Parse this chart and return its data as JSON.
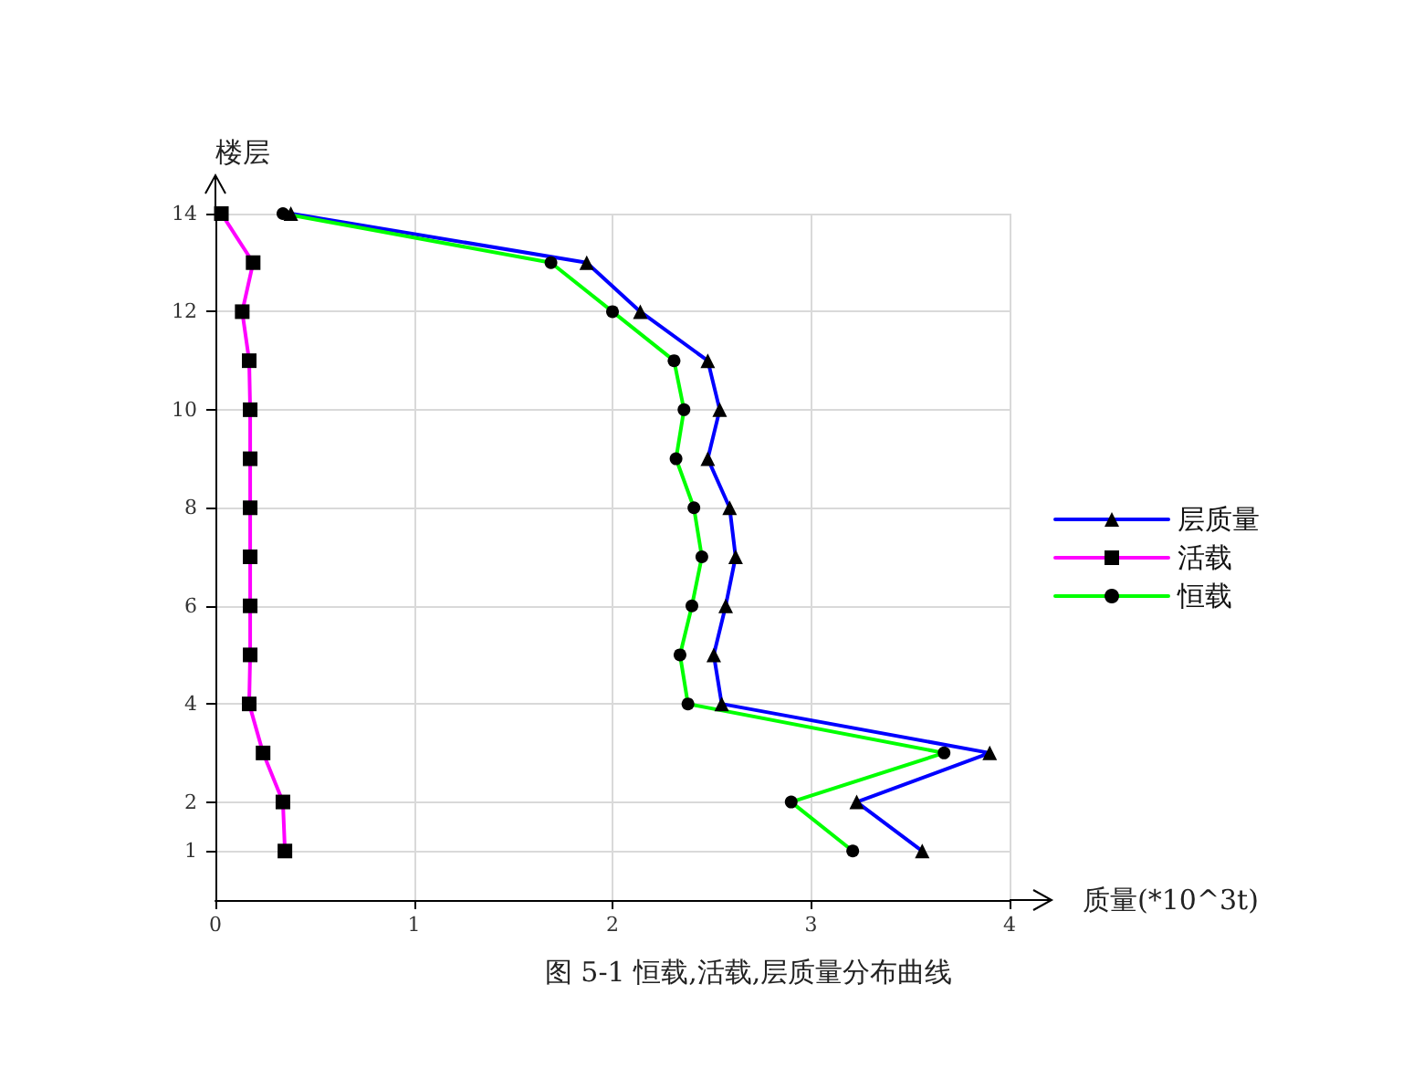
{
  "chart_data": {
    "type": "line",
    "title": "图 5-1 恒载,活载,层质量分布曲线",
    "xlabel": "质量(*10^3t)",
    "ylabel": "楼层",
    "xlim": [
      0,
      4
    ],
    "xticks": [
      0,
      1,
      2,
      3,
      4
    ],
    "ylim": [
      0,
      14
    ],
    "yticks": [
      1,
      2,
      4,
      6,
      8,
      10,
      12,
      14
    ],
    "grid": true,
    "legend": "right",
    "line_style": "solid",
    "series": [
      {
        "name": "层质量",
        "color": "#0000ff",
        "marker": "triangle",
        "x": [
          3.56,
          3.23,
          3.9,
          2.55,
          2.51,
          2.57,
          2.62,
          2.59,
          2.48,
          2.54,
          2.48,
          2.14,
          1.87,
          0.38
        ],
        "values": [
          1,
          2,
          3,
          4,
          5,
          6,
          7,
          8,
          9,
          10,
          11,
          12,
          13,
          14
        ]
      },
      {
        "name": "活载",
        "color": "#ff00ff",
        "marker": "square",
        "x": [
          0.35,
          0.34,
          0.24,
          0.17,
          0.175,
          0.175,
          0.175,
          0.175,
          0.175,
          0.175,
          0.17,
          0.135,
          0.19,
          0.03
        ],
        "values": [
          1,
          2,
          3,
          4,
          5,
          6,
          7,
          8,
          9,
          10,
          11,
          12,
          13,
          14
        ]
      },
      {
        "name": "恒载",
        "color": "#00ff00",
        "marker": "circle",
        "x": [
          3.21,
          2.9,
          3.67,
          2.38,
          2.34,
          2.4,
          2.45,
          2.41,
          2.32,
          2.36,
          2.31,
          2.0,
          1.69,
          0.34
        ],
        "values": [
          1,
          2,
          3,
          4,
          5,
          6,
          7,
          8,
          9,
          10,
          11,
          12,
          13,
          14
        ]
      }
    ]
  }
}
